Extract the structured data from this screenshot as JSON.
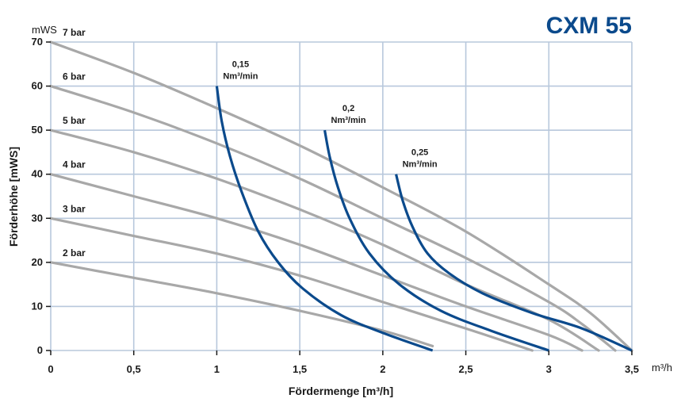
{
  "chart_data": {
    "type": "line",
    "title": "CXM 55",
    "xlabel": "Fördermenge [m³/h]",
    "ylabel": "Förderhöhe [mWS]",
    "x_unit": "m³/h",
    "y_unit": "mWS",
    "xlim": [
      0,
      3.5
    ],
    "ylim": [
      0,
      70
    ],
    "x_ticks": [
      0,
      0.5,
      1,
      1.5,
      2,
      2.5,
      3,
      3.5
    ],
    "x_tick_labels": [
      "0",
      "0,5",
      "1",
      "1,5",
      "2",
      "2,5",
      "3",
      "3,5"
    ],
    "y_ticks": [
      0,
      10,
      20,
      30,
      40,
      50,
      60,
      70
    ],
    "y_tick_labels": [
      "0",
      "10",
      "20",
      "30",
      "40",
      "50",
      "60",
      "70"
    ],
    "grid": true,
    "colors": {
      "pressure": "#a8a8a8",
      "air": "#0b4a8c",
      "grid": "#b8c8dc",
      "title": "#0b4a8c"
    },
    "pressure_series": [
      {
        "name": "7 bar",
        "x": [
          0,
          0.5,
          1,
          1.5,
          2,
          2.5,
          3,
          3.25,
          3.5
        ],
        "y": [
          70,
          63,
          55,
          46.5,
          37,
          27,
          15,
          8.5,
          0
        ]
      },
      {
        "name": "6 bar",
        "x": [
          0,
          0.5,
          1,
          1.5,
          2,
          2.5,
          3,
          3.2,
          3.4
        ],
        "y": [
          60,
          54,
          47,
          39,
          30,
          21,
          11,
          6,
          0
        ]
      },
      {
        "name": "5 bar",
        "x": [
          0,
          0.5,
          1,
          1.5,
          2,
          2.5,
          3,
          3.3
        ],
        "y": [
          50,
          45,
          39,
          32,
          24,
          15,
          7,
          0
        ]
      },
      {
        "name": "4 bar",
        "x": [
          0,
          0.5,
          1,
          1.5,
          2,
          2.5,
          3,
          3.2
        ],
        "y": [
          40,
          35,
          30,
          24,
          17,
          10,
          3.5,
          0
        ]
      },
      {
        "name": "3 bar",
        "x": [
          0,
          0.5,
          1,
          1.5,
          2,
          2.5,
          2.9
        ],
        "y": [
          30,
          26,
          22,
          17,
          11,
          5,
          0
        ]
      },
      {
        "name": "2 bar",
        "x": [
          0,
          0.5,
          1,
          1.5,
          2,
          2.3
        ],
        "y": [
          20,
          16.5,
          13,
          9,
          4.5,
          1
        ]
      }
    ],
    "air_series": [
      {
        "name": "0,15",
        "unit": "Nm³/min",
        "x": [
          1,
          1.03,
          1.08,
          1.15,
          1.25,
          1.37,
          1.52,
          1.75,
          2,
          2.3
        ],
        "y": [
          60,
          52,
          44,
          36,
          27,
          20,
          14,
          8,
          4,
          0
        ]
      },
      {
        "name": "0,2",
        "unit": "Nm³/min",
        "x": [
          1.65,
          1.68,
          1.73,
          1.8,
          1.92,
          2.1,
          2.35,
          2.65,
          3
        ],
        "y": [
          50,
          44,
          37,
          30,
          22,
          15,
          9,
          4.5,
          0
        ]
      },
      {
        "name": "0,25",
        "unit": "Nm³/min",
        "x": [
          2.08,
          2.12,
          2.18,
          2.27,
          2.4,
          2.6,
          2.9,
          3.2,
          3.5
        ],
        "y": [
          40,
          34,
          28,
          22,
          17.5,
          13,
          8.5,
          5,
          0
        ]
      }
    ]
  }
}
